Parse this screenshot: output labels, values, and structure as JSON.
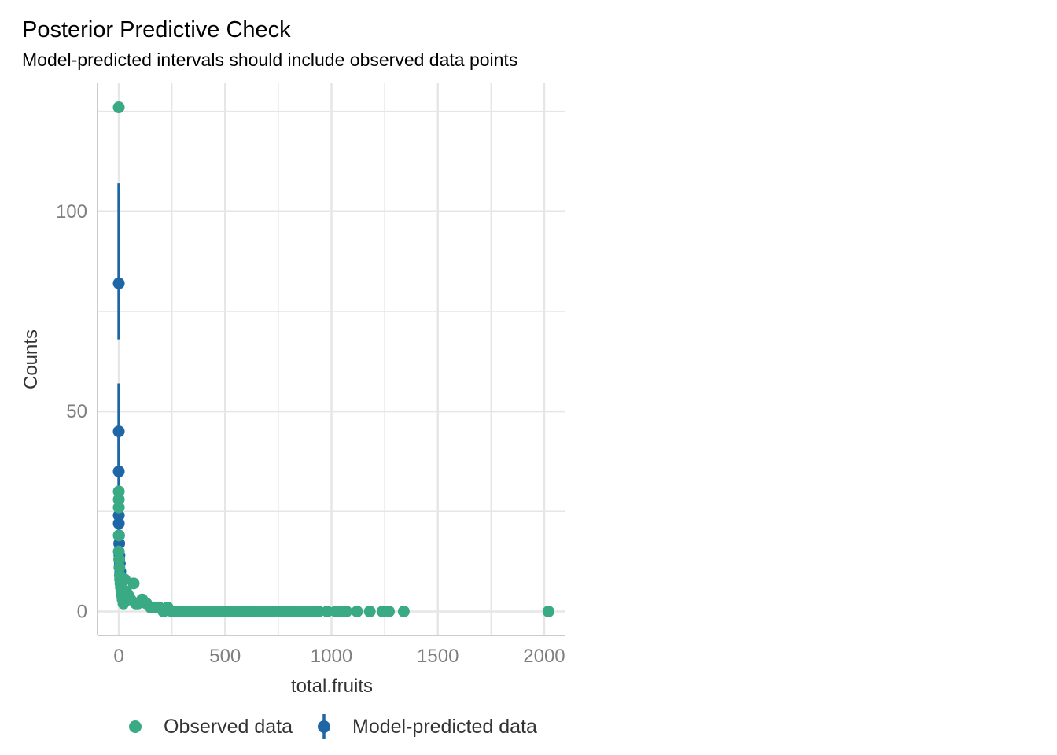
{
  "title": "Posterior Predictive Check",
  "subtitle": "Model-predicted intervals should include observed data points",
  "colors": {
    "observed": "#3aaa84",
    "predicted": "#1f66a6",
    "grid": "#e6e6e6",
    "axis_text": "#7f7f7f"
  },
  "legend": {
    "observed": "Observed data",
    "predicted": "Model-predicted data"
  },
  "chart_data": {
    "type": "scatter",
    "xlabel": "total.fruits",
    "ylabel": "Counts",
    "xlim": [
      -100,
      2100
    ],
    "ylim": [
      -6,
      132
    ],
    "x_ticks": [
      0,
      500,
      1000,
      1500,
      2000
    ],
    "y_ticks": [
      0,
      50,
      100
    ],
    "grid": true,
    "legend_position": "bottom",
    "series": [
      {
        "name": "Observed data",
        "points": [
          {
            "x": 0,
            "y": 126
          },
          {
            "x": 0,
            "y": 30
          },
          {
            "x": 0,
            "y": 28
          },
          {
            "x": 0,
            "y": 26
          },
          {
            "x": 0,
            "y": 19
          },
          {
            "x": 0,
            "y": 15
          },
          {
            "x": 2,
            "y": 13
          },
          {
            "x": 3,
            "y": 11
          },
          {
            "x": 5,
            "y": 9
          },
          {
            "x": 6,
            "y": 8
          },
          {
            "x": 8,
            "y": 7
          },
          {
            "x": 10,
            "y": 6
          },
          {
            "x": 12,
            "y": 5
          },
          {
            "x": 15,
            "y": 4
          },
          {
            "x": 18,
            "y": 3
          },
          {
            "x": 22,
            "y": 2
          },
          {
            "x": 28,
            "y": 8
          },
          {
            "x": 35,
            "y": 5
          },
          {
            "x": 45,
            "y": 4
          },
          {
            "x": 55,
            "y": 3
          },
          {
            "x": 70,
            "y": 7
          },
          {
            "x": 80,
            "y": 2
          },
          {
            "x": 90,
            "y": 2
          },
          {
            "x": 110,
            "y": 3
          },
          {
            "x": 130,
            "y": 2
          },
          {
            "x": 150,
            "y": 1
          },
          {
            "x": 170,
            "y": 1
          },
          {
            "x": 190,
            "y": 1
          },
          {
            "x": 210,
            "y": 0
          },
          {
            "x": 230,
            "y": 1
          },
          {
            "x": 250,
            "y": 0
          },
          {
            "x": 280,
            "y": 0
          },
          {
            "x": 310,
            "y": 0
          },
          {
            "x": 340,
            "y": 0
          },
          {
            "x": 370,
            "y": 0
          },
          {
            "x": 400,
            "y": 0
          },
          {
            "x": 430,
            "y": 0
          },
          {
            "x": 460,
            "y": 0
          },
          {
            "x": 490,
            "y": 0
          },
          {
            "x": 520,
            "y": 0
          },
          {
            "x": 550,
            "y": 0
          },
          {
            "x": 580,
            "y": 0
          },
          {
            "x": 610,
            "y": 0
          },
          {
            "x": 640,
            "y": 0
          },
          {
            "x": 670,
            "y": 0
          },
          {
            "x": 700,
            "y": 0
          },
          {
            "x": 730,
            "y": 0
          },
          {
            "x": 760,
            "y": 0
          },
          {
            "x": 790,
            "y": 0
          },
          {
            "x": 820,
            "y": 0
          },
          {
            "x": 850,
            "y": 0
          },
          {
            "x": 880,
            "y": 0
          },
          {
            "x": 910,
            "y": 0
          },
          {
            "x": 940,
            "y": 0
          },
          {
            "x": 980,
            "y": 0
          },
          {
            "x": 1020,
            "y": 0
          },
          {
            "x": 1050,
            "y": 0
          },
          {
            "x": 1070,
            "y": 0
          },
          {
            "x": 1120,
            "y": 0
          },
          {
            "x": 1180,
            "y": 0
          },
          {
            "x": 1240,
            "y": 0
          },
          {
            "x": 1270,
            "y": 0
          },
          {
            "x": 1340,
            "y": 0
          },
          {
            "x": 2020,
            "y": 0
          }
        ]
      },
      {
        "name": "Model-predicted data",
        "points": [
          {
            "x": 0,
            "y": 82,
            "ymin": 68,
            "ymax": 107
          },
          {
            "x": 0,
            "y": 45,
            "ymin": 35,
            "ymax": 57
          },
          {
            "x": 0,
            "y": 35,
            "ymin": 27,
            "ymax": 45
          },
          {
            "x": 0,
            "y": 24,
            "ymin": 18,
            "ymax": 31
          },
          {
            "x": 0,
            "y": 22,
            "ymin": 16,
            "ymax": 28
          },
          {
            "x": 1,
            "y": 19,
            "ymin": 14,
            "ymax": 25
          },
          {
            "x": 2,
            "y": 17,
            "ymin": 12,
            "ymax": 22
          },
          {
            "x": 3,
            "y": 14,
            "ymin": 10,
            "ymax": 19
          },
          {
            "x": 5,
            "y": 12,
            "ymin": 8,
            "ymax": 16
          },
          {
            "x": 7,
            "y": 10,
            "ymin": 7,
            "ymax": 14
          },
          {
            "x": 9,
            "y": 8,
            "ymin": 5,
            "ymax": 11
          }
        ]
      }
    ]
  }
}
